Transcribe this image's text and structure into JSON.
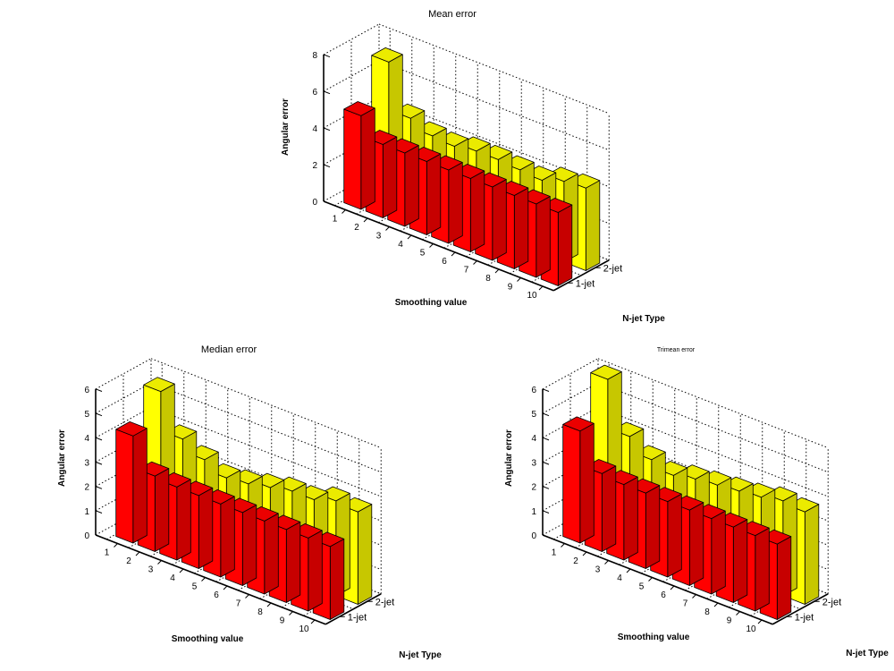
{
  "figure": {
    "colors": {
      "1-jet": "#ff0000",
      "2-jet": "#ffff00",
      "edge": "#000000"
    }
  },
  "chart_data": [
    {
      "type": "bar",
      "title": "Mean error",
      "xlabel": "Smoothing value",
      "ylabel": "Angular error",
      "zlabel": "N-jet Type",
      "categories": [
        "1",
        "2",
        "3",
        "4",
        "5",
        "6",
        "7",
        "8",
        "9",
        "10"
      ],
      "yticks": [
        "0",
        "2",
        "4",
        "6",
        "8"
      ],
      "ylim": [
        0,
        8
      ],
      "ztick_labels": [
        "1-jet",
        "2-jet"
      ],
      "grid": true,
      "series": [
        {
          "name": "1-jet",
          "values": [
            5.1,
            4.0,
            4.0,
            4.0,
            4.0,
            4.0,
            4.0,
            4.0,
            4.0,
            4.0
          ]
        },
        {
          "name": "2-jet",
          "values": [
            7.2,
            4.6,
            4.1,
            4.0,
            4.2,
            4.2,
            4.1,
            4.0,
            4.4,
            4.5
          ]
        }
      ]
    },
    {
      "type": "bar",
      "title": "Median error",
      "xlabel": "Smoothing value",
      "ylabel": "Angular error",
      "zlabel": "N-jet Type",
      "categories": [
        "1",
        "2",
        "3",
        "4",
        "5",
        "6",
        "7",
        "8",
        "9",
        "10"
      ],
      "yticks": [
        "0",
        "1",
        "2",
        "3",
        "4",
        "5",
        "6"
      ],
      "ylim": [
        0,
        6
      ],
      "ztick_labels": [
        "1-jet",
        "2-jet"
      ],
      "grid": true,
      "series": [
        {
          "name": "1-jet",
          "values": [
            4.4,
            3.1,
            3.0,
            3.0,
            3.0,
            3.0,
            3.0,
            3.0,
            3.0,
            3.0
          ]
        },
        {
          "name": "2-jet",
          "values": [
            5.6,
            4.0,
            3.5,
            3.1,
            3.2,
            3.4,
            3.6,
            3.6,
            3.9,
            3.8
          ]
        }
      ]
    },
    {
      "type": "bar",
      "title": "Trimean error",
      "xlabel": "Smoothing value",
      "ylabel": "Angular error",
      "zlabel": "N-jet Type",
      "categories": [
        "1",
        "2",
        "3",
        "4",
        "5",
        "6",
        "7",
        "8",
        "9",
        "10"
      ],
      "yticks": [
        "0",
        "1",
        "2",
        "3",
        "4",
        "5",
        "6"
      ],
      "ylim": [
        0,
        6
      ],
      "ztick_labels": [
        "1-jet",
        "2-jet"
      ],
      "grid": true,
      "series": [
        {
          "name": "1-jet",
          "values": [
            4.6,
            3.2,
            3.1,
            3.1,
            3.1,
            3.1,
            3.1,
            3.1,
            3.1,
            3.1
          ]
        },
        {
          "name": "2-jet",
          "values": [
            6.1,
            4.1,
            3.5,
            3.2,
            3.4,
            3.5,
            3.6,
            3.7,
            3.9,
            3.8
          ]
        }
      ]
    }
  ]
}
